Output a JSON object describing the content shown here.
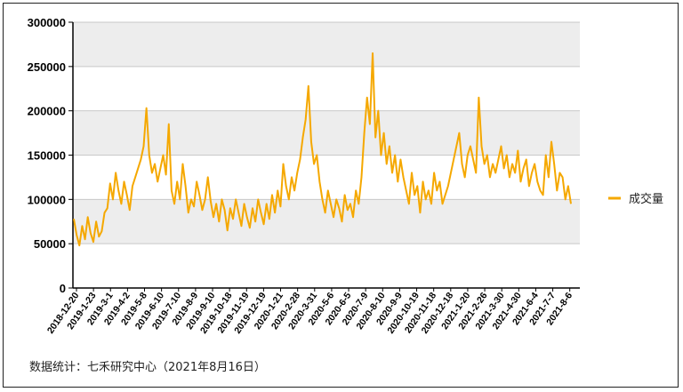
{
  "chart_data": {
    "type": "line",
    "title": "",
    "xlabel": "",
    "ylabel": "",
    "ylim": [
      0,
      300000
    ],
    "yticks": [
      0,
      50000,
      100000,
      150000,
      200000,
      250000,
      300000
    ],
    "ytick_labels": [
      "0",
      "50000",
      "100000",
      "150000",
      "200000",
      "250000",
      "300000"
    ],
    "grid": true,
    "legend_position": "right",
    "colors": {
      "series": "#f5a800",
      "band": "#ededed",
      "grid": "#c8c8c8",
      "axis": "#000000"
    },
    "x_tick_labels": [
      "2018-12-20",
      "2019-1-23",
      "2019-3-1",
      "2019-4-2",
      "2019-5-8",
      "2019-6-10",
      "2019-7-10",
      "2019-8-9",
      "2019-9-10",
      "2019-10-18",
      "2019-11-19",
      "2019-12-19",
      "2020-1-21",
      "2020-2-28",
      "2020-3-31",
      "2020-5-6",
      "2020-6-5",
      "2020-7-9",
      "2020-8-10",
      "2020-9-9",
      "2020-10-19",
      "2020-11-18",
      "2020-12-18",
      "2021-1-20",
      "2021-2-26",
      "2021-3-30",
      "2021-4-30",
      "2021-6-4",
      "2021-7-7",
      "2021-8-6"
    ],
    "series": [
      {
        "name": "成交量",
        "values": [
          78000,
          60000,
          48000,
          70000,
          55000,
          80000,
          62000,
          52000,
          75000,
          58000,
          64000,
          85000,
          90000,
          118000,
          100000,
          130000,
          110000,
          95000,
          120000,
          105000,
          88000,
          115000,
          125000,
          135000,
          145000,
          160000,
          203000,
          150000,
          130000,
          140000,
          120000,
          135000,
          150000,
          128000,
          185000,
          110000,
          95000,
          120000,
          100000,
          140000,
          115000,
          85000,
          100000,
          92000,
          120000,
          105000,
          88000,
          100000,
          125000,
          98000,
          80000,
          95000,
          75000,
          100000,
          88000,
          65000,
          90000,
          78000,
          100000,
          85000,
          70000,
          95000,
          80000,
          68000,
          90000,
          75000,
          100000,
          85000,
          72000,
          95000,
          78000,
          105000,
          85000,
          110000,
          92000,
          140000,
          115000,
          100000,
          125000,
          110000,
          130000,
          145000,
          170000,
          190000,
          228000,
          165000,
          140000,
          150000,
          120000,
          100000,
          85000,
          110000,
          95000,
          80000,
          100000,
          90000,
          75000,
          105000,
          88000,
          95000,
          80000,
          110000,
          95000,
          125000,
          175000,
          215000,
          185000,
          265000,
          170000,
          200000,
          150000,
          175000,
          140000,
          160000,
          130000,
          150000,
          120000,
          145000,
          125000,
          110000,
          95000,
          130000,
          105000,
          115000,
          85000,
          120000,
          100000,
          110000,
          95000,
          130000,
          110000,
          120000,
          95000,
          105000,
          115000,
          130000,
          145000,
          160000,
          175000,
          140000,
          125000,
          150000,
          160000,
          145000,
          130000,
          215000,
          160000,
          140000,
          150000,
          125000,
          140000,
          130000,
          145000,
          160000,
          135000,
          150000,
          125000,
          140000,
          130000,
          155000,
          120000,
          135000,
          145000,
          115000,
          130000,
          140000,
          120000,
          110000,
          105000,
          150000,
          125000,
          165000,
          140000,
          110000,
          130000,
          125000,
          100000,
          115000,
          95000
        ]
      }
    ]
  },
  "legend": {
    "label": "成交量"
  },
  "footnote": "数据统计：七禾研究中心（2021年8月16日）"
}
